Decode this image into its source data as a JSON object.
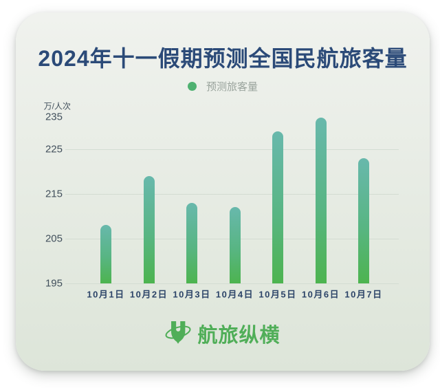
{
  "header": {
    "title": "2024年十一假期预测全国民航旅客量"
  },
  "legend": {
    "label": "预测旅客量"
  },
  "chart_data": {
    "type": "bar",
    "title": "2024年十一假期预测全国民航旅客量",
    "ylabel": "万/人次",
    "xlabel": "",
    "categories": [
      "10月1日",
      "10月2日",
      "10月3日",
      "10月4日",
      "10月5日",
      "10月6日",
      "10月7日"
    ],
    "series": [
      {
        "name": "预测旅客量",
        "values": [
          208,
          219,
          213,
          212,
          229,
          232,
          223
        ]
      }
    ],
    "y_ticks": [
      235,
      225,
      215,
      205,
      195
    ],
    "ylim": [
      195,
      235
    ],
    "grid": "horizontal-only, no gridline at top tick 235",
    "legend_position": "top-center"
  },
  "footer": {
    "logo_text": "航旅纵横",
    "logo_icon": "umetrip-shield-u-with-orbit-ring-icon"
  },
  "colors": {
    "card_bg_top": "#f0f2ee",
    "card_bg_bottom": "#dde5d9",
    "title": "#2b4a78",
    "axis_label": "#42505c",
    "x_label": "#2c4468",
    "gridline": "#d3dcd2",
    "legend_text": "#99a39c",
    "legend_dot": "#4fb171",
    "bar_gradient_top": "#68b8ac",
    "bar_gradient_bottom": "#4db44f",
    "logo_green": "#50ae58"
  }
}
